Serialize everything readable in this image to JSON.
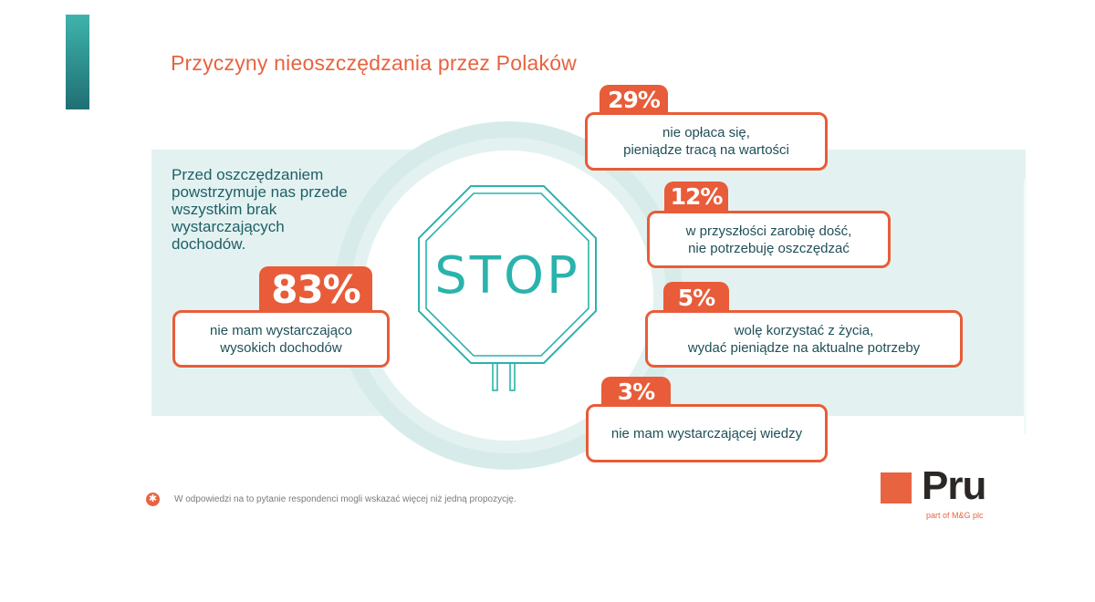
{
  "title": "Przyczyny nieoszczędzania przez Polaków",
  "lead": "Przed oszczędzaniem powstrzymuje nas przede wszystkim brak wystarczających dochodów.",
  "sign": {
    "text": "STOP"
  },
  "main": {
    "percent": "83%",
    "lines": [
      "nie mam wystarczająco",
      "wysokich dochodów"
    ]
  },
  "reasons": [
    {
      "percent": "29%",
      "lines": [
        "nie opłaca się,",
        "pieniądze tracą na wartości"
      ]
    },
    {
      "percent": "12%",
      "lines": [
        "w przyszłości zarobię dość,",
        "nie potrzebuję oszczędzać"
      ]
    },
    {
      "percent": "5%",
      "lines": [
        "wolę korzystać z życia,",
        "wydać pieniądze na aktualne potrzeby"
      ]
    },
    {
      "percent": "3%",
      "lines": [
        "nie mam wystarczającej wiedzy"
      ]
    }
  ],
  "footnote": {
    "icon": "asterisk-icon",
    "text": "W odpowiedzi na to pytanie respondenci mogli wskazać więcej niż jedną propozycję."
  },
  "logo": {
    "name": "Pru",
    "subtitle": "part of M&G plc"
  },
  "colors": {
    "accent": "#e85c39",
    "teal": "#2ab3ac",
    "band": "#e3f2f1",
    "text": "#1f5f66"
  }
}
